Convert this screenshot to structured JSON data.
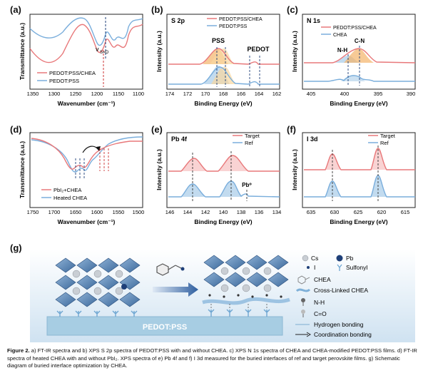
{
  "panels": {
    "a": {
      "label": "(a)",
      "ylabel": "Transmittance (a.u.)",
      "xlabel": "Wavenumber (cm⁻¹)",
      "annotation": "v",
      "annotation_sub": "S=O",
      "legend": [
        "PEDOT:PSS/CHEA",
        "PEDOT:PSS"
      ],
      "ticks": [
        "1350",
        "1300",
        "1250",
        "1200",
        "1150",
        "1100"
      ]
    },
    "b": {
      "label": "(b)",
      "title": "S 2p",
      "ylabel": "Intensity (a.u.)",
      "xlabel": "Binding Energy (eV)",
      "legend": [
        "PEDOT:PSS/CHEA",
        "PEDOT:PSS"
      ],
      "peak_labels": [
        "PSS",
        "PEDOT"
      ],
      "ticks": [
        "174",
        "172",
        "170",
        "168",
        "166",
        "164",
        "162"
      ]
    },
    "c": {
      "label": "(c)",
      "title": "N 1s",
      "ylabel": "Intensity (a.u.)",
      "xlabel": "Binding Energy (eV)",
      "legend": [
        "PEDOT:PSS/CHEA",
        "CHEA"
      ],
      "peak_labels": [
        "N-H",
        "C-N"
      ],
      "ticks": [
        "405",
        "400",
        "395",
        "390"
      ]
    },
    "d": {
      "label": "(d)",
      "ylabel": "Transmittance (a.u.)",
      "xlabel": "Wavenumber (cm⁻¹)",
      "legend": [
        "PbI₂+CHEA",
        "Heated CHEA"
      ],
      "ticks": [
        "1750",
        "1700",
        "1650",
        "1600",
        "1550",
        "1500"
      ]
    },
    "e": {
      "label": "(e)",
      "title": "Pb 4f",
      "ylabel": "Intensity (a.u.)",
      "xlabel": "Binding Energy (eV)",
      "legend": [
        "Target",
        "Ref"
      ],
      "peak_labels": [
        "Pb⁰"
      ],
      "ticks": [
        "146",
        "144",
        "142",
        "140",
        "138",
        "136",
        "134"
      ]
    },
    "f": {
      "label": "(f)",
      "title": "I 3d",
      "ylabel": "Intensity (a.u.)",
      "xlabel": "Binding Energy (eV)",
      "legend": [
        "Target",
        "Ref"
      ],
      "ticks": [
        "635",
        "630",
        "625",
        "620",
        "615"
      ]
    },
    "g": {
      "label": "(g)",
      "substrate": "PEDOT:PSS",
      "legend": {
        "cs": "Cs",
        "pb": "Pb",
        "i": "I",
        "sulfonyl": "Sulfonyl",
        "chea": "CHEA",
        "crosslinked": "Cross-Linked CHEA",
        "nh": "N-H",
        "co": "C=O",
        "hbond": "Hydrogen bonding",
        "coord": "Coordination bonding"
      }
    }
  },
  "caption": {
    "lead": "Figure 2.",
    "text": "a) FT-IR spectra and b) XPS S 2p spectra of PEDOT:PSS with and without CHEA. c) XPS N 1s spectra of CHEA and CHEA-modified PEDOT:PSS films. d) FT-IR spectra of heated CHEA with and without PbI₂. XPS spectra of e) Pb 4f and f) I 3d measured for the buried interfaces of ref and target perovskite films. g) Schematic diagram of buried interface optimization by CHEA."
  },
  "colors": {
    "red": "#e8787a",
    "blue": "#7aaedc",
    "darkblue": "#1e3f78",
    "orange": "#f3b36a",
    "substrate": "#a7cde3"
  }
}
